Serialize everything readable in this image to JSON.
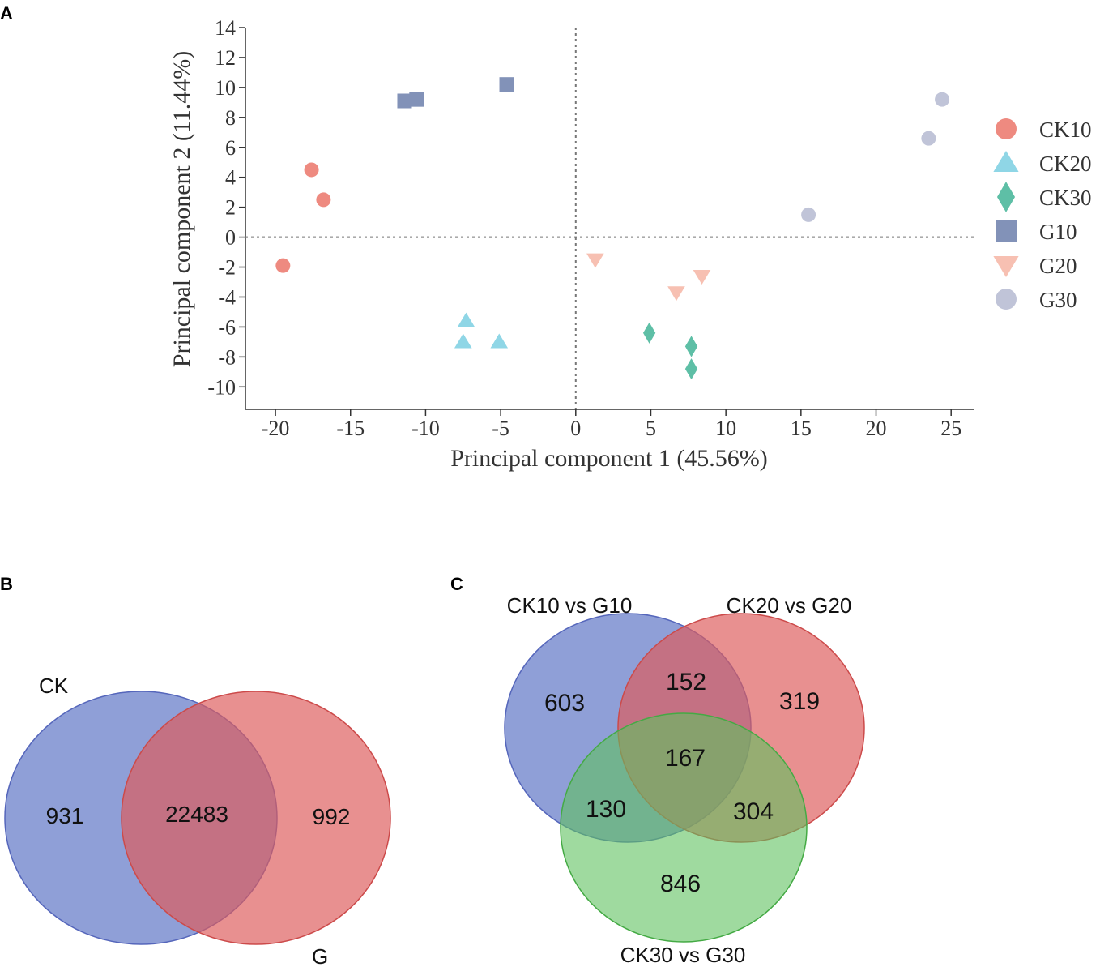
{
  "panels": {
    "a": "A",
    "b": "B",
    "c": "C"
  },
  "chart_data": [
    {
      "type": "scatter",
      "xlabel": "Principal component 1 (45.56%)",
      "ylabel": "Principal component 2 (11.44%)",
      "xlim": [
        -22,
        26.5
      ],
      "ylim": [
        -11.5,
        14
      ],
      "xticks": [
        -20,
        -15,
        -10,
        -5,
        0,
        5,
        10,
        15,
        20,
        25
      ],
      "yticks": [
        14,
        12,
        10,
        8,
        6,
        4,
        2,
        0,
        -2,
        -4,
        -6,
        -8,
        -10
      ],
      "reference_lines": {
        "x": 0,
        "y": 0
      },
      "series": [
        {
          "name": "CK10",
          "marker": "circle",
          "color": "#ee8a80",
          "points": [
            [
              -17.6,
              4.5
            ],
            [
              -16.8,
              2.5
            ],
            [
              -19.5,
              -1.9
            ]
          ]
        },
        {
          "name": "CK20",
          "marker": "triangle-up",
          "color": "#8fd6e6",
          "points": [
            [
              -7.3,
              -5.6
            ],
            [
              -7.5,
              -7.0
            ],
            [
              -5.1,
              -7.0
            ]
          ]
        },
        {
          "name": "CK30",
          "marker": "diamond",
          "color": "#5ebfa6",
          "points": [
            [
              4.9,
              -6.4
            ],
            [
              7.7,
              -7.3
            ],
            [
              7.7,
              -8.8
            ]
          ]
        },
        {
          "name": "G10",
          "marker": "square",
          "color": "#8292b8",
          "points": [
            [
              -11.4,
              9.1
            ],
            [
              -10.6,
              9.2
            ],
            [
              -4.6,
              10.2
            ]
          ]
        },
        {
          "name": "G20",
          "marker": "triangle-down",
          "color": "#f7c0b2",
          "points": [
            [
              1.3,
              -1.5
            ],
            [
              6.7,
              -3.7
            ],
            [
              8.4,
              -2.6
            ]
          ]
        },
        {
          "name": "G30",
          "marker": "circle",
          "color": "#c0c4d8",
          "points": [
            [
              15.5,
              1.5
            ],
            [
              23.5,
              6.6
            ],
            [
              24.4,
              9.2
            ]
          ]
        }
      ]
    },
    {
      "type": "venn",
      "sets": [
        {
          "label": "CK",
          "color": "#7b8ed0"
        },
        {
          "label": "G",
          "color": "#e47a7a"
        }
      ],
      "regions": {
        "only_ck": "931",
        "both": "22483",
        "only_g": "992"
      }
    },
    {
      "type": "venn",
      "sets": [
        {
          "label": "CK10 vs G10",
          "color": "#7b8ed0"
        },
        {
          "label": "CK20 vs G20",
          "color": "#e47a7a"
        },
        {
          "label": "CK30 vs G30",
          "color": "#78cc78"
        }
      ],
      "regions": {
        "a_only": "603",
        "b_only": "319",
        "c_only": "846",
        "ab": "152",
        "ac": "130",
        "bc": "304",
        "abc": "167"
      }
    }
  ]
}
